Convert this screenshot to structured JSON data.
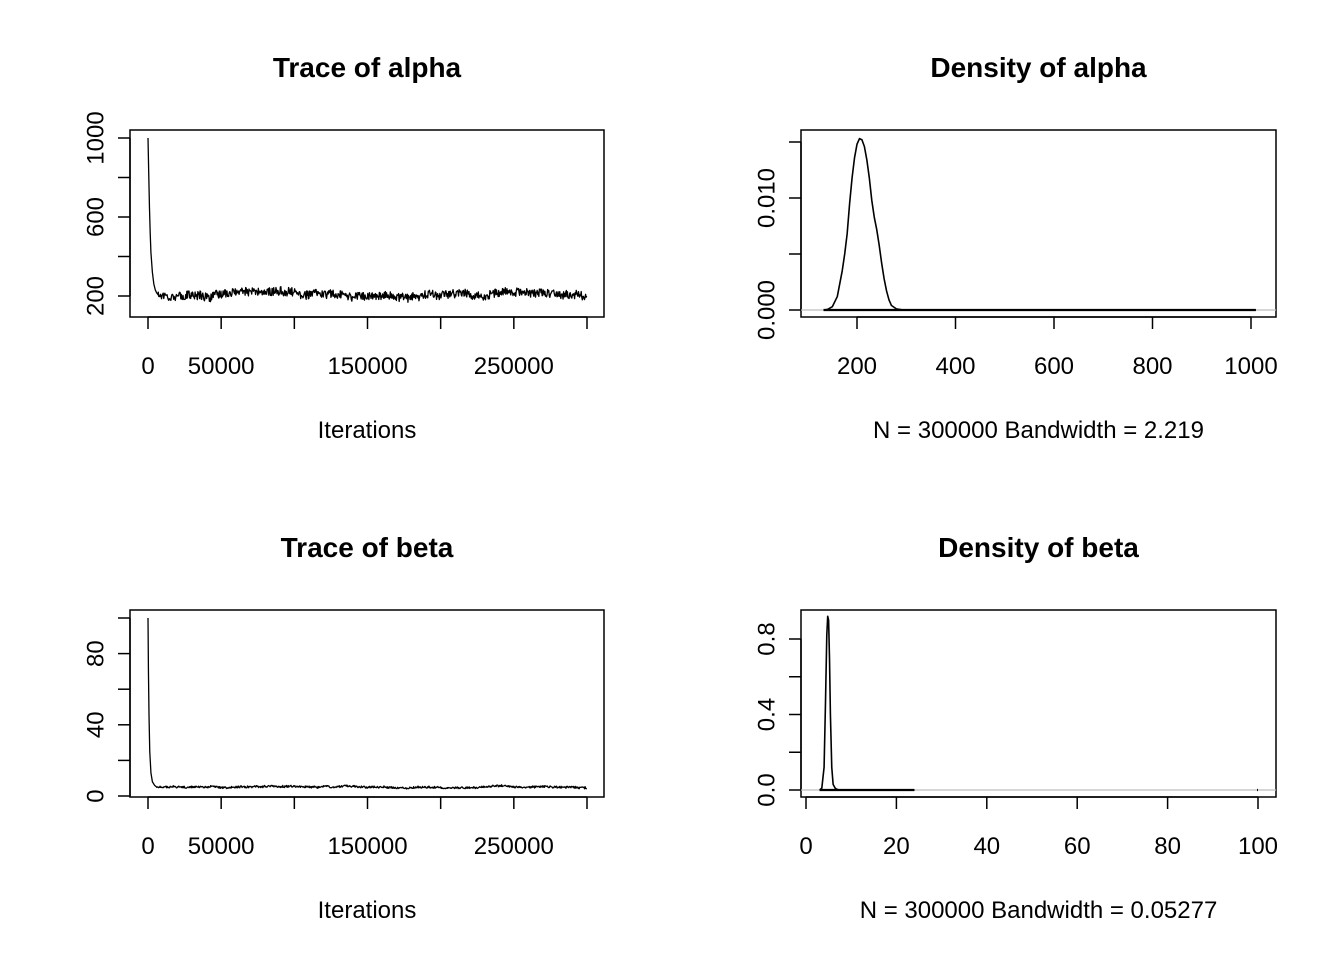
{
  "chart_data": [
    {
      "id": "trace_alpha",
      "type": "line",
      "title": "Trace of alpha",
      "xlabel": "Iterations",
      "ylabel": "",
      "xlim": [
        0,
        300000
      ],
      "ylim": [
        200,
        1000
      ],
      "xticks": [
        0,
        50000,
        100000,
        150000,
        200000,
        250000,
        300000
      ],
      "xtick_labels": [
        "0",
        "50000",
        "",
        "150000",
        "",
        "250000",
        ""
      ],
      "yticks": [
        200,
        400,
        600,
        800,
        1000
      ],
      "ytick_labels": [
        "200",
        "",
        "600",
        "",
        "1000"
      ],
      "series": [
        {
          "name": "alpha",
          "burnin": [
            [
              0,
              1000
            ],
            [
              500,
              820
            ],
            [
              1000,
              650
            ],
            [
              1500,
              520
            ],
            [
              2000,
              420
            ],
            [
              3000,
              320
            ],
            [
              4000,
              260
            ],
            [
              5000,
              230
            ],
            [
              6000,
              215
            ],
            [
              7000,
              205
            ]
          ],
          "stationary": {
            "mean": 208,
            "sd": 22,
            "amplitude": 30,
            "start": 7000,
            "end": 300000
          }
        }
      ]
    },
    {
      "id": "density_alpha",
      "type": "line",
      "title": "Density of alpha",
      "xlabel": "N = 300000   Bandwidth = 2.219",
      "ylabel": "",
      "xlim": [
        130,
        1010
      ],
      "ylim": [
        0,
        0.0155
      ],
      "xticks": [
        200,
        400,
        600,
        800,
        1000
      ],
      "xtick_labels": [
        "200",
        "400",
        "600",
        "800",
        "1000"
      ],
      "yticks": [
        0,
        0.005,
        0.01,
        0.015
      ],
      "ytick_labels": [
        "0.000",
        "",
        "0.010",
        ""
      ],
      "series": [
        {
          "name": "density",
          "x": [
            132,
            140,
            150,
            160,
            170,
            175,
            180,
            185,
            190,
            195,
            200,
            205,
            210,
            215,
            220,
            225,
            230,
            235,
            240,
            245,
            250,
            255,
            260,
            265,
            270,
            280,
            290,
            300,
            400,
            600,
            800,
            1010
          ],
          "y": [
            0,
            5e-05,
            0.0003,
            0.0012,
            0.0035,
            0.005,
            0.0068,
            0.0095,
            0.0118,
            0.0136,
            0.0148,
            0.0153,
            0.0152,
            0.0146,
            0.0134,
            0.0118,
            0.0098,
            0.0083,
            0.0072,
            0.0058,
            0.0042,
            0.0028,
            0.0017,
            0.0009,
            0.0004,
            0.0001,
            3e-05,
            1e-05,
            0,
            0,
            0,
            0
          ],
          "rug_from": 132
        }
      ]
    },
    {
      "id": "trace_beta",
      "type": "line",
      "title": "Trace of beta",
      "xlabel": "Iterations",
      "ylabel": "",
      "xlim": [
        0,
        300000
      ],
      "ylim": [
        0,
        100
      ],
      "xticks": [
        0,
        50000,
        100000,
        150000,
        200000,
        250000,
        300000
      ],
      "xtick_labels": [
        "0",
        "50000",
        "",
        "150000",
        "",
        "250000",
        ""
      ],
      "yticks": [
        0,
        20,
        40,
        60,
        80,
        100
      ],
      "ytick_labels": [
        "0",
        "",
        "40",
        "",
        "80",
        ""
      ],
      "series": [
        {
          "name": "beta",
          "burnin": [
            [
              0,
              100
            ],
            [
              300,
              70
            ],
            [
              700,
              45
            ],
            [
              1200,
              25
            ],
            [
              2000,
              13
            ],
            [
              3000,
              8
            ],
            [
              4500,
              6
            ],
            [
              6000,
              5
            ]
          ],
          "stationary": {
            "mean": 5,
            "sd": 0.6,
            "amplitude": 0.8,
            "start": 6000,
            "end": 300000
          }
        }
      ]
    },
    {
      "id": "density_beta",
      "type": "line",
      "title": "Density of beta",
      "xlabel": "N = 300000   Bandwidth = 0.05277",
      "ylabel": "",
      "xlim": [
        0,
        100
      ],
      "ylim": [
        0,
        0.93
      ],
      "xticks": [
        0,
        20,
        40,
        60,
        80,
        100
      ],
      "xtick_labels": [
        "0",
        "20",
        "40",
        "60",
        "80",
        "100"
      ],
      "yticks": [
        0,
        0.2,
        0.4,
        0.6,
        0.8
      ],
      "ytick_labels": [
        "0.0",
        "",
        "0.4",
        "",
        "0.8"
      ],
      "series": [
        {
          "name": "density",
          "x": [
            3,
            3.5,
            4,
            4.3,
            4.6,
            4.8,
            5,
            5.2,
            5.4,
            5.7,
            6,
            6.5,
            7,
            10,
            24
          ],
          "y": [
            0,
            0.01,
            0.12,
            0.45,
            0.82,
            0.92,
            0.9,
            0.7,
            0.4,
            0.12,
            0.03,
            0.008,
            0.002,
            0,
            0
          ],
          "rug_segments": [
            [
              3,
              24
            ],
            [
              99.8,
              100
            ]
          ]
        }
      ]
    }
  ]
}
